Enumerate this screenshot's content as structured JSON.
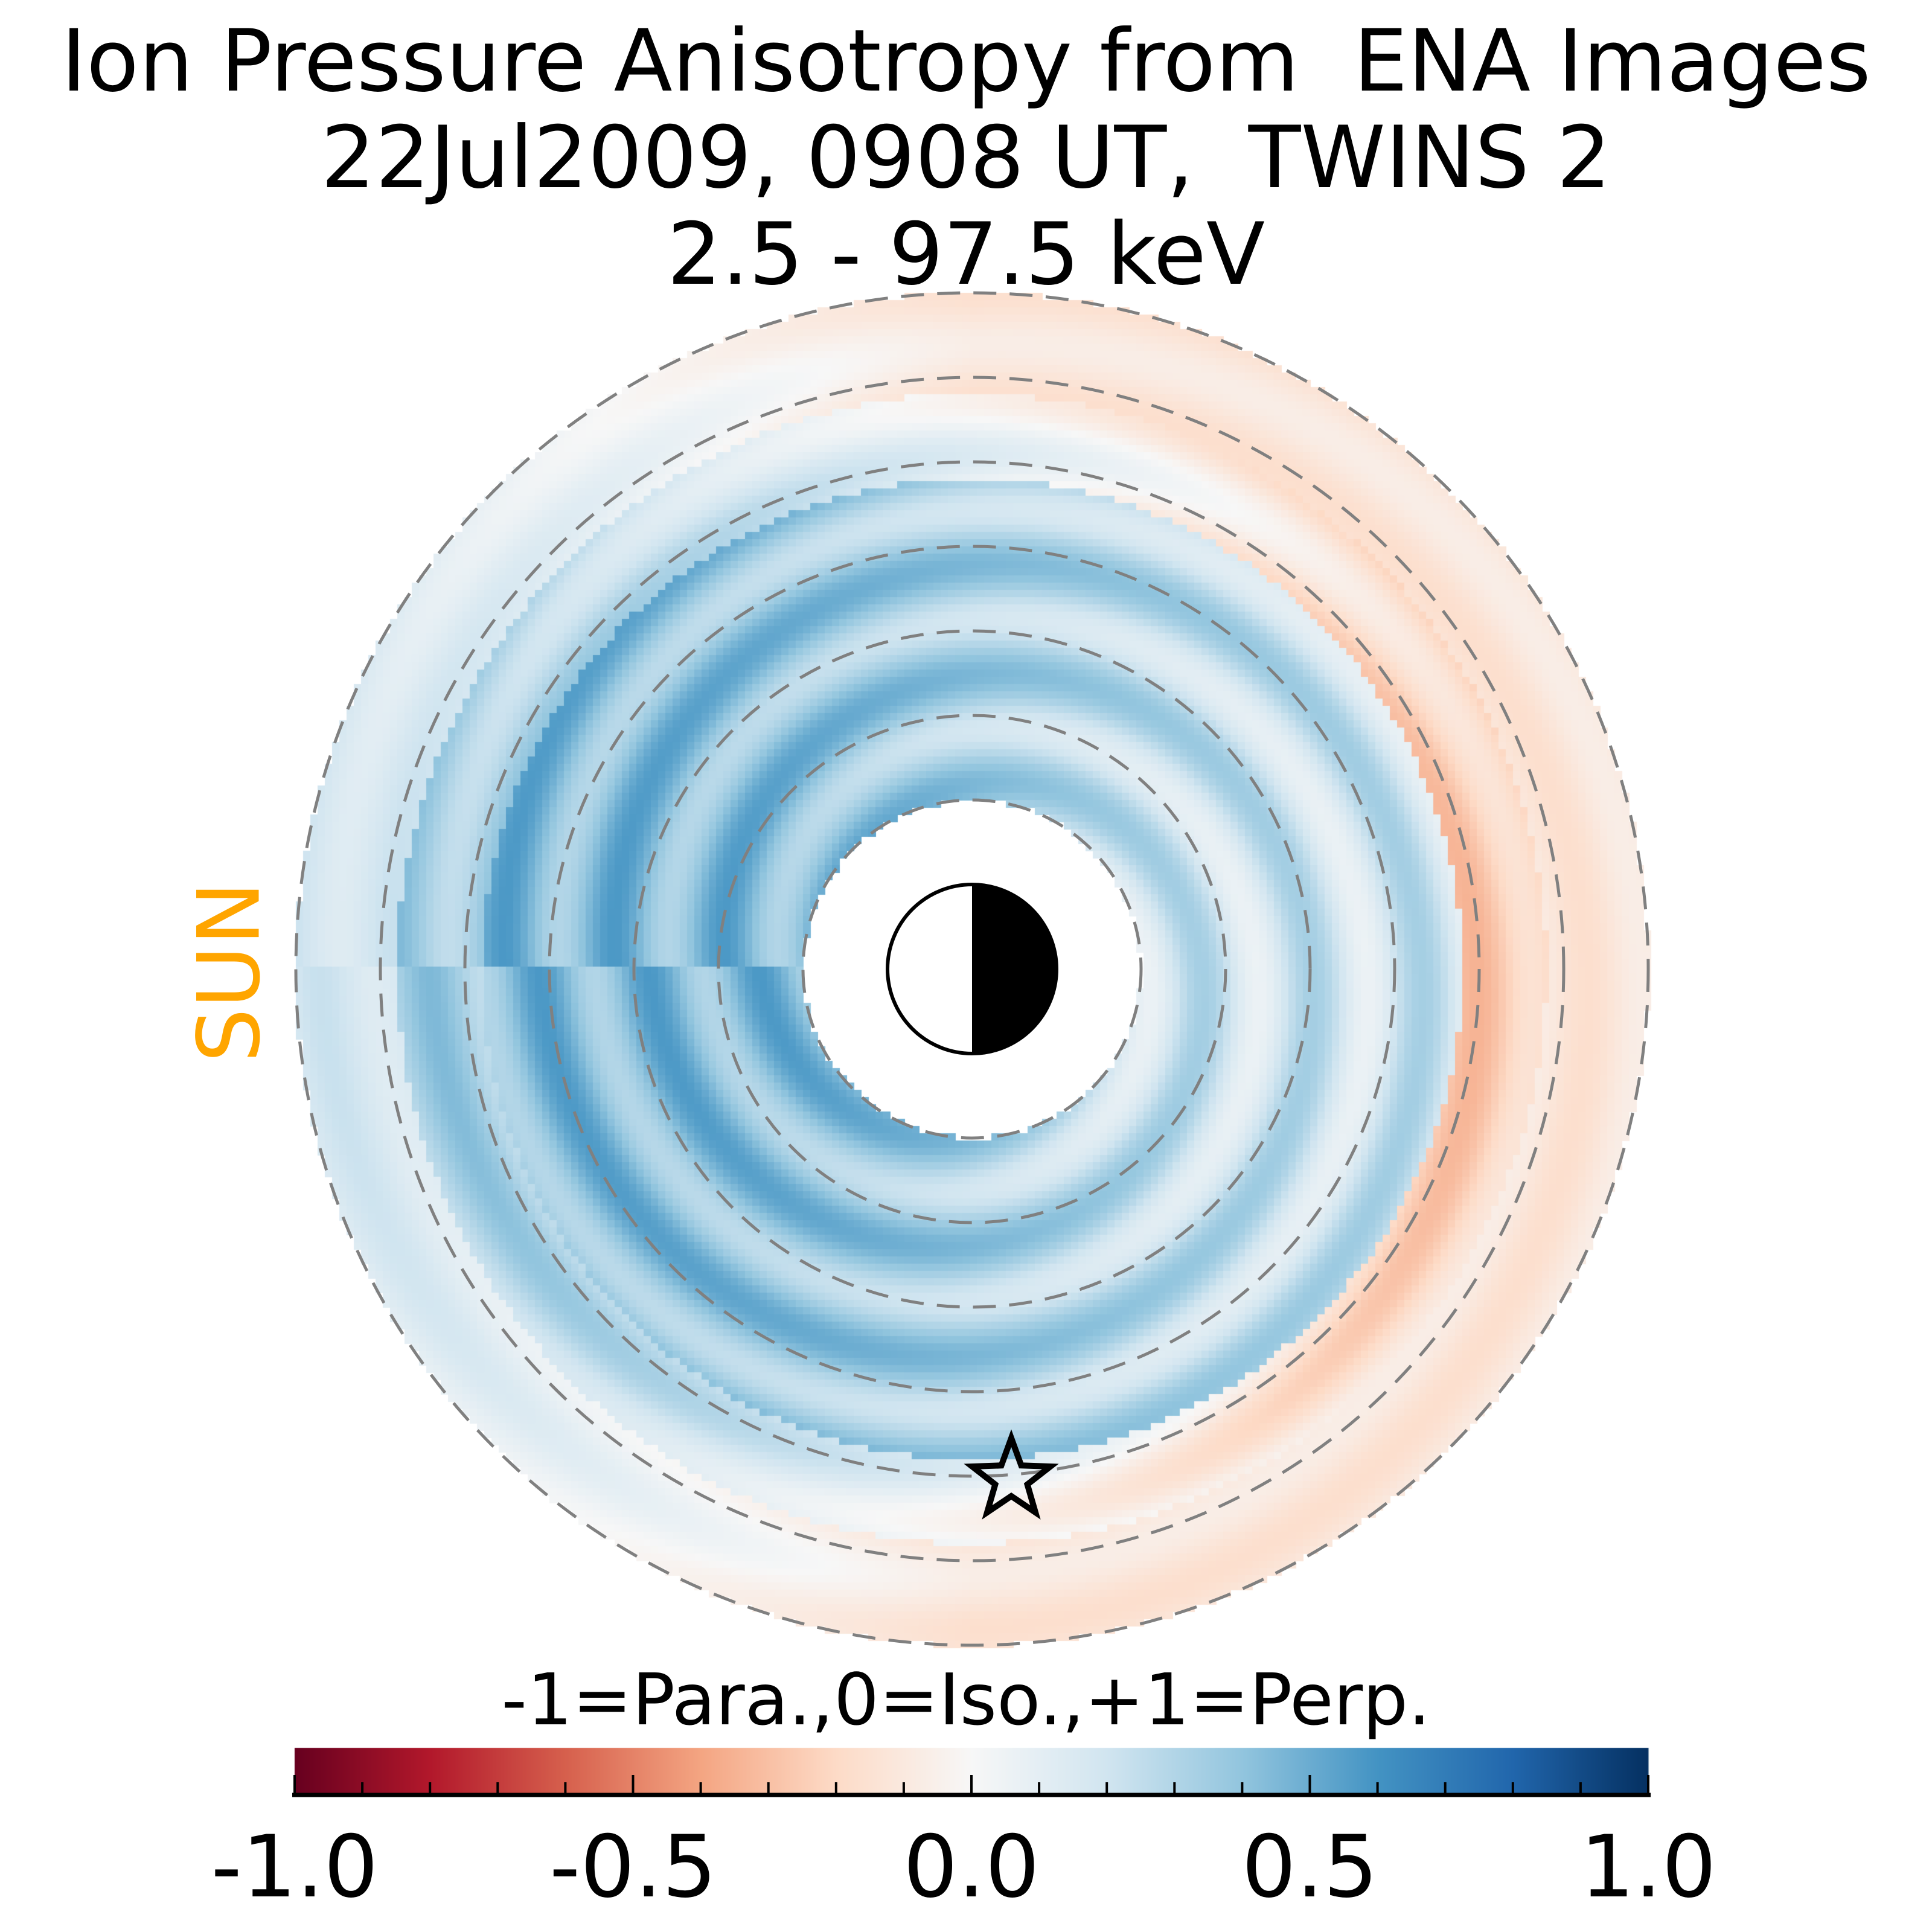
{
  "chart_data": {
    "type": "heatmap",
    "title": [
      "Ion Pressure Anisotropy from  ENA Images",
      "22Jul2009, 0908 UT,  TWINS 2",
      "2.5 - 97.5 keV"
    ],
    "sun_label": "SUN",
    "colorbar": {
      "label": "-1=Para.,0=Iso.,+1=Perp.",
      "vmin": -1.0,
      "vmax": 1.0,
      "ticks": [
        -1.0,
        -0.5,
        0.0,
        0.5,
        1.0
      ],
      "tick_labels": [
        "-1.0",
        "-0.5",
        "0.0",
        "0.5",
        "1.0"
      ],
      "minor_step": 0.1,
      "colormap": [
        "#67001f",
        "#b2182b",
        "#d6604d",
        "#f4a582",
        "#fddbc7",
        "#f7f7f7",
        "#d1e5f0",
        "#92c5de",
        "#4393c3",
        "#2166ac",
        "#053061"
      ]
    },
    "radial_range_re": [
      2,
      8
    ],
    "dashed_circles_re": [
      2,
      3,
      4,
      5,
      6,
      7,
      8
    ],
    "spacecraft_marker": "star",
    "colors": {
      "sun": "#FFA500",
      "grid": "#808080"
    }
  }
}
